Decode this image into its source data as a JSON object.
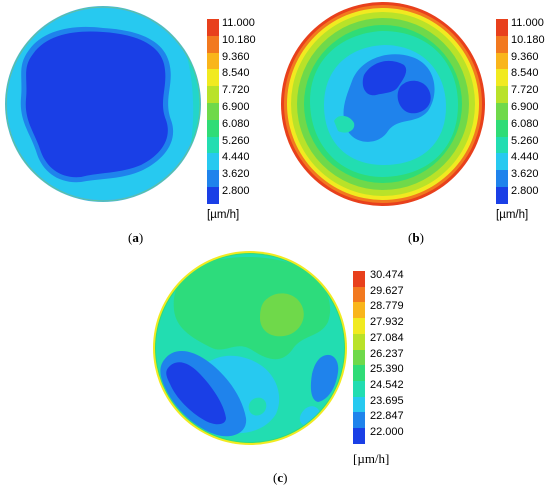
{
  "panels": [
    {
      "id": "a",
      "caption_open": "(",
      "caption_letter": "a",
      "caption_close": ")",
      "unit": "[µm/h]",
      "legend_labels": [
        "11.000",
        "10.180",
        "9.360",
        "8.540",
        "7.720",
        "6.900",
        "6.080",
        "5.260",
        "4.440",
        "3.620",
        "2.800"
      ]
    },
    {
      "id": "b",
      "caption_open": "(",
      "caption_letter": "b",
      "caption_close": ")",
      "unit": "[µm/h]",
      "legend_labels": [
        "11.000",
        "10.180",
        "9.360",
        "8.540",
        "7.720",
        "6.900",
        "6.080",
        "5.260",
        "4.440",
        "3.620",
        "2.800"
      ]
    },
    {
      "id": "c",
      "caption_open": "(",
      "caption_letter": "c",
      "caption_close": ")",
      "unit": "[µm/h]",
      "legend_labels": [
        "30.474",
        "29.627",
        "28.779",
        "27.932",
        "27.084",
        "26.237",
        "25.390",
        "24.542",
        "23.695",
        "22.847",
        "22.000"
      ]
    }
  ],
  "legend_colors": [
    "#e8401c",
    "#f2791f",
    "#f9b51b",
    "#f1ea20",
    "#b9e229",
    "#6fd94a",
    "#2fdc77",
    "#22ddb1",
    "#27c9f0",
    "#1f83ec",
    "#1a3fe6"
  ],
  "disc_colors": {
    "deep_blue": "#1a3fe6",
    "blue": "#1f83ec",
    "light_blue": "#27c9f0",
    "cyan_green": "#22ddb1",
    "green": "#2fdc77",
    "lime": "#6fd94a",
    "yellow_green": "#b9e229",
    "yellow": "#f1ea20",
    "orange": "#f2791f",
    "red": "#e8401c"
  }
}
